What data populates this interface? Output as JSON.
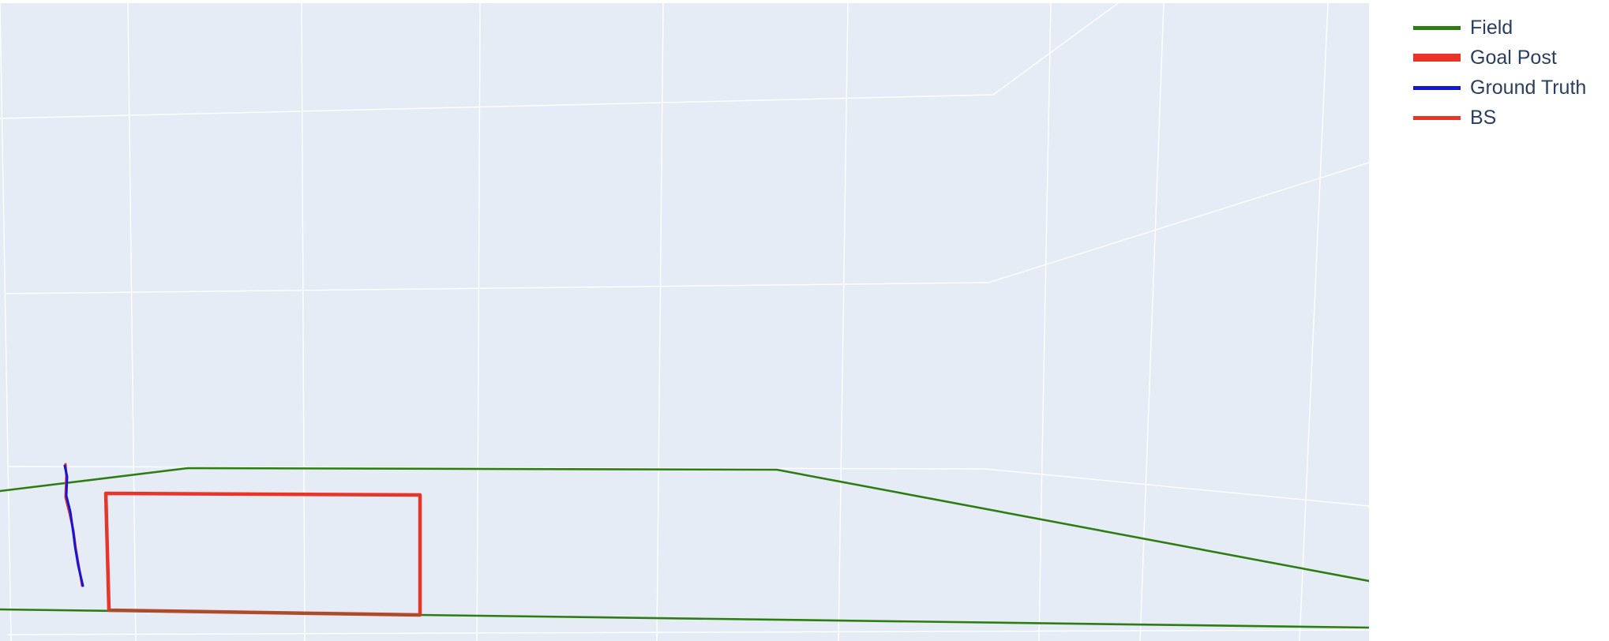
{
  "chart_data": {
    "type": "line",
    "projection": "3d-scene",
    "title": "",
    "legend_position": "top-right",
    "background_color": "#e5ecf6",
    "grid": true,
    "grid_color": "#ffffff",
    "series": [
      {
        "name": "Field",
        "color": "#2e7d12"
      },
      {
        "name": "Goal Post",
        "color": "#e8352a"
      },
      {
        "name": "Ground Truth",
        "color": "#1515d6"
      },
      {
        "name": "BS",
        "color": "#e8352a"
      }
    ]
  }
}
